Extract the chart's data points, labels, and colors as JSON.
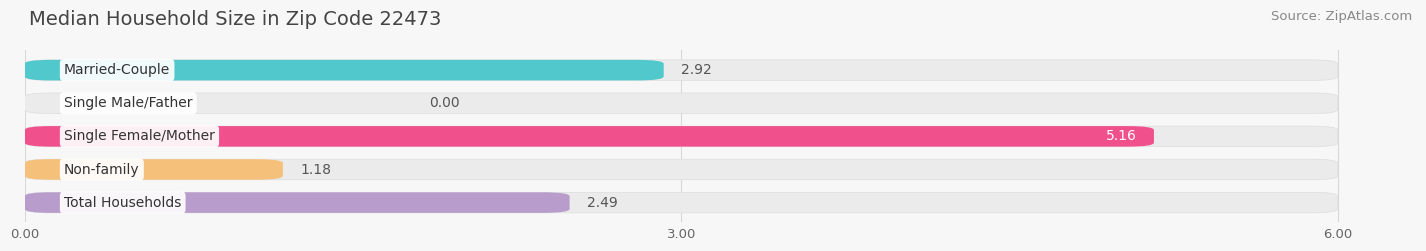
{
  "title": "Median Household Size in Zip Code 22473",
  "source": "Source: ZipAtlas.com",
  "categories": [
    "Married-Couple",
    "Single Male/Father",
    "Single Female/Mother",
    "Non-family",
    "Total Households"
  ],
  "values": [
    2.92,
    0.0,
    5.16,
    1.18,
    2.49
  ],
  "bar_colors": [
    "#50C8CC",
    "#A0B4E8",
    "#F0508C",
    "#F5C07A",
    "#B89CCC"
  ],
  "value_label_colors": [
    "#333333",
    "#333333",
    "#ffffff",
    "#333333",
    "#333333"
  ],
  "xlim": [
    0,
    6.36
  ],
  "xlim_display": 6.0,
  "xticks": [
    0.0,
    3.0,
    6.0
  ],
  "xtick_labels": [
    "0.00",
    "3.00",
    "6.00"
  ],
  "title_fontsize": 14,
  "source_fontsize": 9.5,
  "bar_label_fontsize": 10,
  "category_fontsize": 10,
  "background_color": "#f7f7f7",
  "bar_bg_color": "#ebebeb",
  "bar_height": 0.62,
  "bar_spacing": 1.0,
  "label_box_color": "#ffffff",
  "grid_color": "#d8d8d8"
}
